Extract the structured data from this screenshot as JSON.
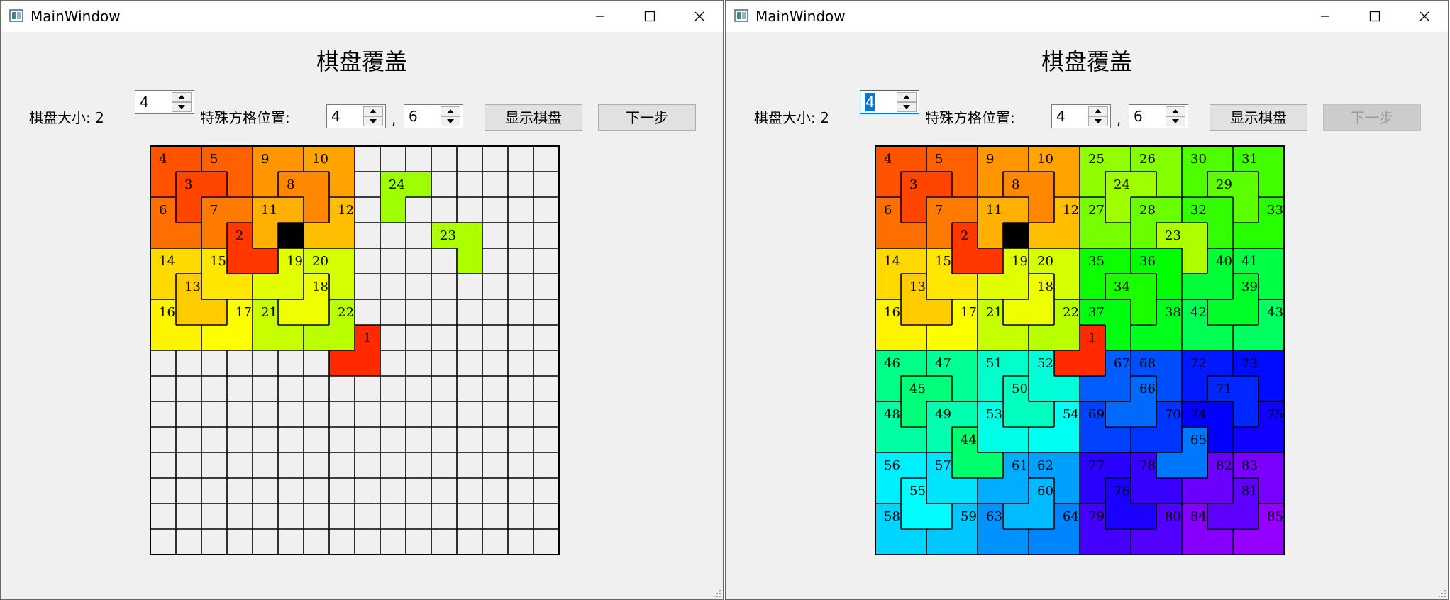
{
  "windows": [
    {
      "title": "MainWindow",
      "heading": "棋盘覆盖",
      "board_size_label": "棋盘大小: 2",
      "size_value": "4",
      "special_label": "特殊方格位置:",
      "special_row": "4",
      "comma": ",",
      "special_col": "6",
      "show_button": "显示棋盘",
      "next_button": "下一步",
      "next_disabled": false,
      "size_selected": false,
      "board": {
        "n": 16,
        "special": [
          3,
          5
        ],
        "shown_tiles": 24
      }
    },
    {
      "title": "MainWindow",
      "heading": "棋盘覆盖",
      "board_size_label": "棋盘大小: 2",
      "size_value": "4",
      "special_label": "特殊方格位置:",
      "special_row": "4",
      "comma": ",",
      "special_col": "6",
      "show_button": "显示棋盘",
      "next_button": "下一步",
      "next_disabled": true,
      "size_selected": true,
      "board": {
        "n": 16,
        "special": [
          3,
          5
        ],
        "shown_tiles": 85
      }
    }
  ],
  "colors": {
    "special_cell": "#000000",
    "empty_cell": "#f0f0f0",
    "grid_line": "#000000"
  }
}
